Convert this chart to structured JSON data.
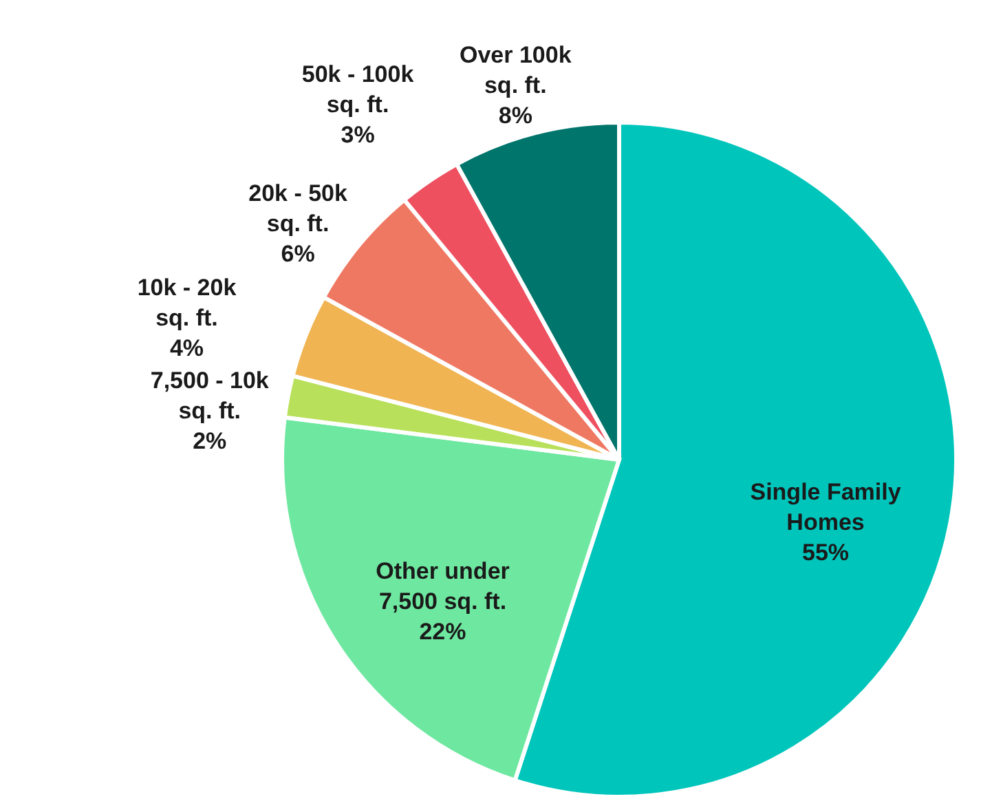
{
  "chart_data": {
    "type": "pie",
    "categories": [
      "Single Family Homes",
      "Other under 7,500 sq. ft.",
      "7,500 - 10k sq. ft.",
      "10k - 20k sq. ft.",
      "20k - 50k sq. ft.",
      "50k - 100k sq. ft.",
      "Over 100k sq. ft."
    ],
    "values": [
      55,
      22,
      2,
      4,
      6,
      3,
      8
    ],
    "value_labels": [
      "55%",
      "22%",
      "2%",
      "4%",
      "6%",
      "3%",
      "8%"
    ],
    "colors": [
      "#00c5bb",
      "#6ee8a0",
      "#b9e05a",
      "#f0b452",
      "#ef7862",
      "#ee5060",
      "#00756c"
    ]
  }
}
